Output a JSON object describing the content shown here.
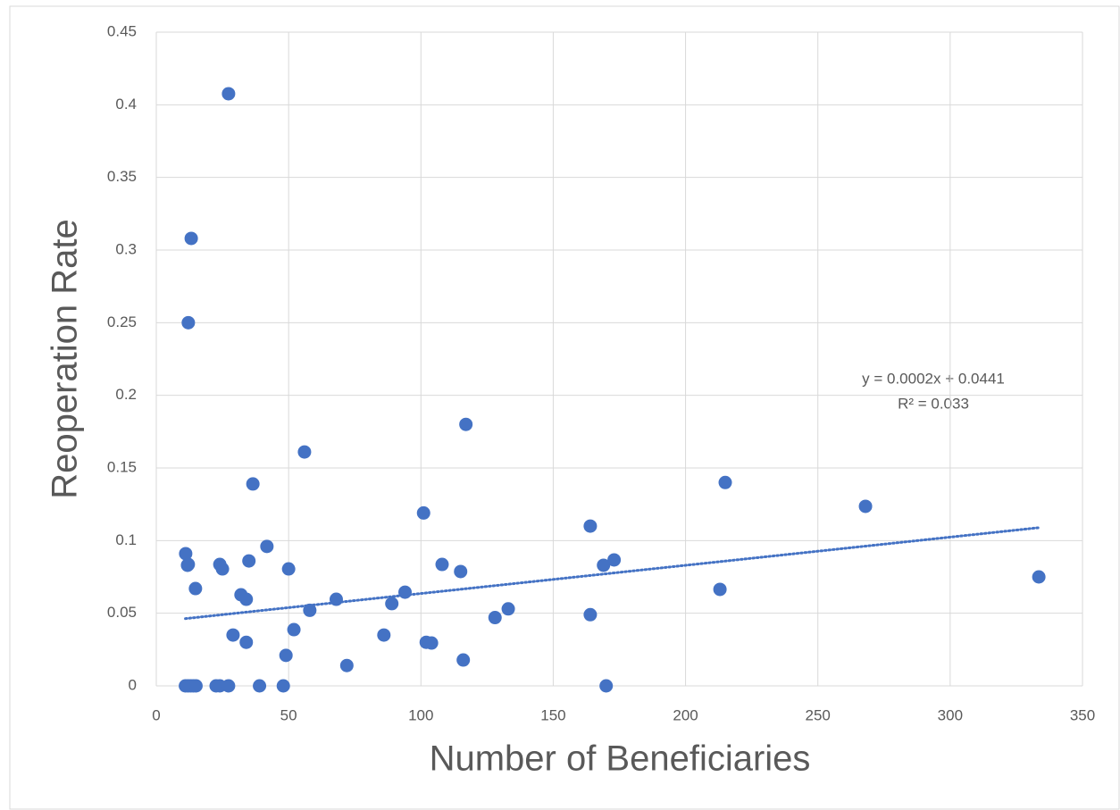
{
  "chart_data": {
    "type": "scatter",
    "xlabel": "Number of Beneficiaries",
    "ylabel": "Reoperation Rate",
    "annotations": [
      "y = 0.0002x + 0.0441",
      "R² = 0.033"
    ],
    "series": [
      {
        "name": "Reoperation Rate",
        "color": "#4472c4",
        "x": [
          11.1,
          12.1,
          11.8,
          27.3,
          13.2,
          12.1,
          14.8,
          24,
          25,
          35,
          36.5,
          41.8,
          32,
          34,
          29,
          34,
          50,
          56,
          58,
          52,
          49,
          68,
          72,
          86,
          89,
          94,
          101,
          102,
          104,
          108,
          115,
          117,
          116,
          128,
          133,
          164,
          164,
          169,
          173,
          170,
          213,
          215,
          268,
          333.5,
          11,
          12,
          13,
          14,
          15,
          22.6,
          24,
          27.3,
          39,
          48
        ],
        "values": [
          0.091,
          0.0836,
          0.083,
          0.4076,
          0.308,
          0.25,
          0.067,
          0.0836,
          0.0805,
          0.086,
          0.139,
          0.096,
          0.0627,
          0.0596,
          0.035,
          0.03,
          0.0805,
          0.161,
          0.052,
          0.0387,
          0.021,
          0.0596,
          0.014,
          0.035,
          0.0566,
          0.0645,
          0.119,
          0.03,
          0.0295,
          0.0836,
          0.0787,
          0.18,
          0.0178,
          0.047,
          0.053,
          0.11,
          0.049,
          0.083,
          0.0867,
          0,
          0.0664,
          0.14,
          0.1236,
          0.075,
          0,
          0,
          0,
          0,
          0,
          0,
          0,
          0,
          0,
          0
        ]
      }
    ],
    "trendline": {
      "color": "#4472c4",
      "x": [
        11,
        334
      ],
      "values": [
        0.0463,
        0.109
      ]
    },
    "xlim": [
      0,
      350
    ],
    "xticks": [
      0,
      50,
      100,
      150,
      200,
      250,
      300,
      350
    ],
    "ylim": [
      0,
      0.45
    ],
    "yticks": [
      0,
      0.05,
      0.1,
      0.15,
      0.2,
      0.25,
      0.3,
      0.35,
      0.4,
      0.45
    ],
    "grid": true
  }
}
